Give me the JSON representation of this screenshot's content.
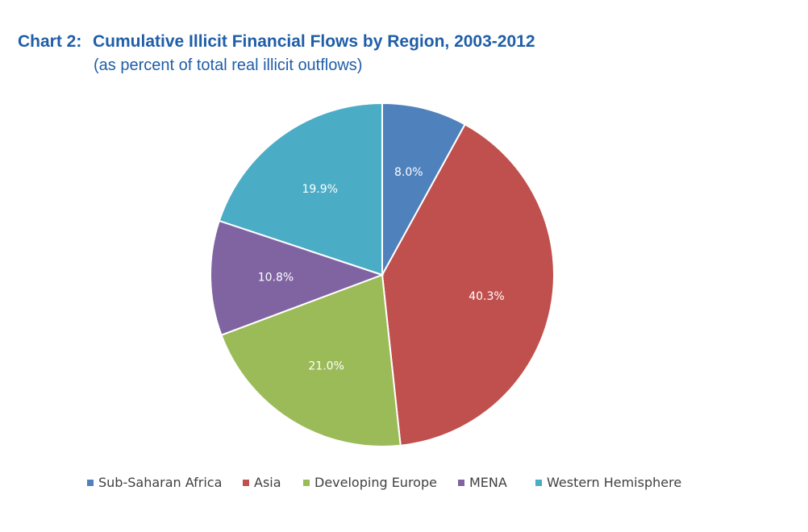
{
  "chart_title": {
    "label": "Chart 2:",
    "text": "Cumulative Illicit Financial Flows by Region, 2003-2012",
    "subtitle": "(as percent of total real illicit outflows)"
  },
  "chart_data": {
    "type": "pie",
    "title": "Cumulative Illicit Financial Flows by Region, 2003-2012",
    "subtitle": "(as percent of total real illicit outflows)",
    "legend_position": "bottom",
    "slices": [
      {
        "name": "Sub-Saharan Africa",
        "value": 8.0,
        "label": "8.0%",
        "color": "#4f81bd"
      },
      {
        "name": "Asia",
        "value": 40.3,
        "label": "40.3%",
        "color": "#c0504d"
      },
      {
        "name": "Developing Europe",
        "value": 21.0,
        "label": "21.0%",
        "color": "#9bbb59"
      },
      {
        "name": "MENA",
        "value": 10.8,
        "label": "10.8%",
        "color": "#8064a2"
      },
      {
        "name": "Western Hemisphere",
        "value": 19.9,
        "label": "19.9%",
        "color": "#4bacc6"
      }
    ]
  }
}
